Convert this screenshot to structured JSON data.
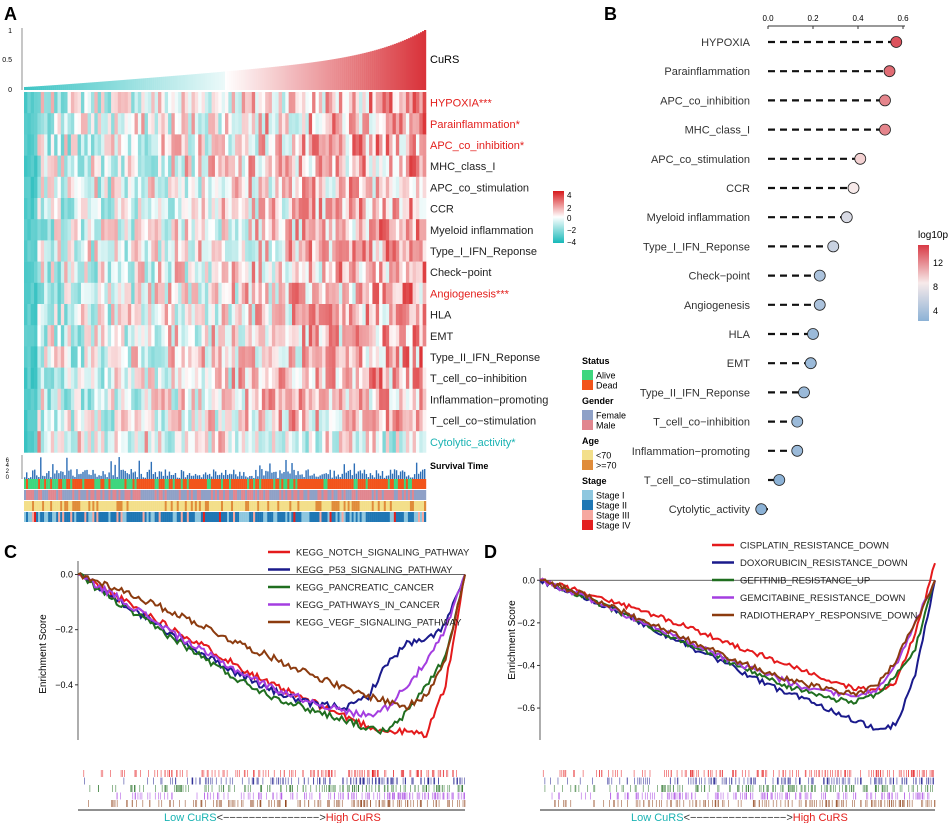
{
  "panel_letters": [
    "A",
    "B",
    "C",
    "D"
  ],
  "colors": {
    "heat_low": "#17b8b8",
    "heat_mid": "#ffffff",
    "heat_high": "#d7191c",
    "red_label": "#e3201d",
    "teal_label": "#1bb3b3",
    "bar_teal": "#3cc4c4",
    "bar_red": "#d9333a",
    "surv_bar": "#2e6fb7",
    "alive": "#3fd67e",
    "dead": "#f2541b",
    "female": "#8fa1c7",
    "male": "#e1868f",
    "age_young": "#f3df8a",
    "age_old": "#e08c3a",
    "stage1": "#8ec7df",
    "stage2": "#1f77b4",
    "stage3": "#f6a8a0",
    "stage4": "#e32020",
    "lollipop_low": "#8cb2d6",
    "lollipop_high": "#d83a45"
  },
  "chart_data": [
    {
      "type": "heatmap",
      "panel": "A",
      "top_barplot": {
        "label": "CuRS",
        "y_ticks": [
          "0",
          "0.5",
          "1"
        ],
        "ylim": [
          0,
          1
        ],
        "n_samples": 200
      },
      "rows": [
        {
          "label": "HYPOXIA***",
          "highlight": "red"
        },
        {
          "label": "Parainflammation*",
          "highlight": "red"
        },
        {
          "label": "APC_co_inhibition*",
          "highlight": "red"
        },
        {
          "label": "MHC_class_I",
          "highlight": "none"
        },
        {
          "label": "APC_co_stimulation",
          "highlight": "none"
        },
        {
          "label": "CCR",
          "highlight": "none"
        },
        {
          "label": "Myeloid inflammation",
          "highlight": "none"
        },
        {
          "label": "Type_I_IFN_Reponse",
          "highlight": "none"
        },
        {
          "label": "Check−point",
          "highlight": "none"
        },
        {
          "label": "Angiogenesis***",
          "highlight": "red"
        },
        {
          "label": "HLA",
          "highlight": "none"
        },
        {
          "label": "EMT",
          "highlight": "none"
        },
        {
          "label": "Type_II_IFN_Reponse",
          "highlight": "none"
        },
        {
          "label": "T_cell_co−inhibition",
          "highlight": "none"
        },
        {
          "label": "Inflammation−promoting",
          "highlight": "none"
        },
        {
          "label": "T_cell_co−stimulation",
          "highlight": "none"
        },
        {
          "label": "Cytolytic_activity*",
          "highlight": "teal"
        }
      ],
      "color_scale": {
        "ticks": [
          "4",
          "2",
          "0",
          "−2",
          "−4"
        ],
        "range": [
          -4,
          4
        ]
      },
      "survival": {
        "label": "Survival Time",
        "y_ticks": [
          "6",
          "4",
          "2",
          "0"
        ]
      },
      "legends": [
        {
          "title": "Status",
          "items": [
            {
              "label": "Alive",
              "color": "#3fd67e"
            },
            {
              "label": "Dead",
              "color": "#f2541b"
            }
          ]
        },
        {
          "title": "Gender",
          "items": [
            {
              "label": "Female",
              "color": "#8fa1c7"
            },
            {
              "label": "Male",
              "color": "#e1868f"
            }
          ]
        },
        {
          "title": "Age",
          "items": [
            {
              "label": "<70",
              "color": "#f3df8a"
            },
            {
              "label": ">=70",
              "color": "#e08c3a"
            }
          ]
        },
        {
          "title": "Stage",
          "items": [
            {
              "label": "Stage I",
              "color": "#8ec7df"
            },
            {
              "label": "Stage II",
              "color": "#1f77b4"
            },
            {
              "label": "Stage III",
              "color": "#f6a8a0"
            },
            {
              "label": "Stage IV",
              "color": "#e32020"
            }
          ]
        }
      ]
    },
    {
      "type": "scatter",
      "panel": "B",
      "subtype": "lollipop",
      "x_ticks": [
        "0.0",
        "0.2",
        "0.4",
        "0.6"
      ],
      "xlim": [
        0,
        0.6
      ],
      "categories": [
        "HYPOXIA",
        "Parainflammation",
        "APC_co_inhibition",
        "MHC_class_I",
        "APC_co_stimulation",
        "CCR",
        "Myeloid inflammation",
        "Type_I_IFN_Reponse",
        "Check−point",
        "Angiogenesis",
        "HLA",
        "EMT",
        "Type_II_IFN_Reponse",
        "T_cell_co−inhibition",
        "Inflammation−promoting",
        "T_cell_co−stimulation",
        "Cytolytic_activity"
      ],
      "values": [
        0.57,
        0.54,
        0.52,
        0.52,
        0.41,
        0.38,
        0.35,
        0.29,
        0.23,
        0.23,
        0.2,
        0.19,
        0.16,
        0.13,
        0.13,
        0.05,
        -0.03
      ],
      "color_values": [
        14,
        13,
        12,
        12,
        9,
        8,
        6,
        5,
        3,
        3,
        2,
        2,
        2,
        2,
        2,
        1,
        1
      ],
      "legend": {
        "title": "log10p",
        "ticks": [
          "12",
          "8",
          "4"
        ],
        "range": [
          1,
          15
        ]
      }
    },
    {
      "type": "line",
      "panel": "C",
      "ylabel": "Enrichment Score",
      "y_ticks": [
        "0.0",
        "−0.2",
        "−0.4"
      ],
      "ylim": [
        -0.6,
        0.02
      ],
      "xlabel_low": "Low CuRS",
      "xlabel_mid": "<−−−−−−−−−−−−−−−>",
      "xlabel_high": "High CuRS",
      "x": [
        0,
        0.1,
        0.2,
        0.3,
        0.4,
        0.5,
        0.6,
        0.7,
        0.75,
        0.8,
        0.85,
        0.9,
        0.95,
        1.0
      ],
      "series": [
        {
          "name": "KEGG_NOTCH_SIGNALING_PATHWAY",
          "color": "#e41a1c",
          "values": [
            0,
            -0.08,
            -0.16,
            -0.24,
            -0.32,
            -0.4,
            -0.46,
            -0.52,
            -0.55,
            -0.57,
            -0.57,
            -0.58,
            -0.4,
            0
          ]
        },
        {
          "name": "KEGG_P53_SIGNALING_PATHWAY",
          "color": "#1a1a8c",
          "values": [
            0,
            -0.09,
            -0.18,
            -0.27,
            -0.35,
            -0.42,
            -0.47,
            -0.48,
            -0.44,
            -0.32,
            -0.25,
            -0.24,
            -0.18,
            0
          ]
        },
        {
          "name": "KEGG_PANCREATIC_CANCER",
          "color": "#1f6e1f",
          "values": [
            0,
            -0.1,
            -0.19,
            -0.28,
            -0.37,
            -0.44,
            -0.49,
            -0.53,
            -0.56,
            -0.57,
            -0.5,
            -0.4,
            -0.3,
            0
          ]
        },
        {
          "name": "KEGG_PATHWAYS_IN_CANCER",
          "color": "#a43ee0",
          "values": [
            0,
            -0.08,
            -0.17,
            -0.26,
            -0.34,
            -0.41,
            -0.46,
            -0.5,
            -0.51,
            -0.48,
            -0.4,
            -0.32,
            -0.2,
            0
          ]
        },
        {
          "name": "KEGG_VEGF_SIGNALING_PATHWAY",
          "color": "#8c3b0f",
          "values": [
            0,
            -0.05,
            -0.11,
            -0.17,
            -0.24,
            -0.3,
            -0.36,
            -0.42,
            -0.44,
            -0.46,
            -0.48,
            -0.44,
            -0.3,
            0
          ]
        }
      ]
    },
    {
      "type": "line",
      "panel": "D",
      "ylabel": "Enrichment Score",
      "y_ticks": [
        "0.0",
        "−0.2",
        "−0.4",
        "−0.6"
      ],
      "ylim": [
        -0.75,
        0.02
      ],
      "xlabel_low": "Low CuRS",
      "xlabel_mid": "<−−−−−−−−−−−−−−−>",
      "xlabel_high": "High CuRS",
      "x": [
        0,
        0.1,
        0.2,
        0.3,
        0.4,
        0.5,
        0.6,
        0.7,
        0.75,
        0.8,
        0.85,
        0.9,
        0.95,
        1.0
      ],
      "series": [
        {
          "name": "CISPLATIN_RESISTANCE_DOWN",
          "color": "#e41a1c",
          "values": [
            0,
            -0.05,
            -0.11,
            -0.17,
            -0.24,
            -0.31,
            -0.38,
            -0.45,
            -0.48,
            -0.51,
            -0.52,
            -0.48,
            -0.25,
            0.08
          ]
        },
        {
          "name": "DOXORUBICIN_RESISTANCE_DOWN",
          "color": "#1a1a8c",
          "values": [
            0,
            -0.07,
            -0.15,
            -0.24,
            -0.33,
            -0.42,
            -0.51,
            -0.58,
            -0.62,
            -0.66,
            -0.7,
            -0.68,
            -0.45,
            0
          ]
        },
        {
          "name": "GEFITINIB_RESISTANCE_UP",
          "color": "#1f6e1f",
          "values": [
            0,
            -0.07,
            -0.15,
            -0.24,
            -0.32,
            -0.4,
            -0.48,
            -0.54,
            -0.56,
            -0.57,
            -0.54,
            -0.45,
            -0.32,
            0
          ]
        },
        {
          "name": "GEMCITABINE_RESISTANCE_DOWN",
          "color": "#a43ee0",
          "values": [
            0,
            -0.07,
            -0.15,
            -0.23,
            -0.31,
            -0.39,
            -0.46,
            -0.52,
            -0.53,
            -0.54,
            -0.52,
            -0.4,
            -0.2,
            0
          ]
        },
        {
          "name": "RADIOTHERAPY_RESPONSIVE_DOWN",
          "color": "#8c3b0f",
          "values": [
            0,
            -0.06,
            -0.14,
            -0.22,
            -0.3,
            -0.38,
            -0.45,
            -0.5,
            -0.52,
            -0.53,
            -0.5,
            -0.38,
            -0.2,
            0
          ]
        }
      ]
    }
  ]
}
